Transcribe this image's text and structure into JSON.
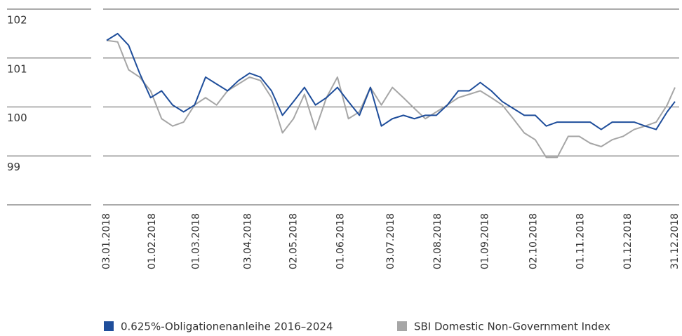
{
  "chart_data": {
    "type": "line",
    "x": [
      "03.01.2018",
      "10.01.2018",
      "17.01.2018",
      "24.01.2018",
      "31.01.2018",
      "07.02.2018",
      "14.02.2018",
      "21.02.2018",
      "28.02.2018",
      "07.03.2018",
      "14.03.2018",
      "21.03.2018",
      "28.03.2018",
      "04.04.2018",
      "11.04.2018",
      "18.04.2018",
      "25.04.2018",
      "02.05.2018",
      "09.05.2018",
      "16.05.2018",
      "23.05.2018",
      "30.05.2018",
      "06.06.2018",
      "13.06.2018",
      "20.06.2018",
      "27.06.2018",
      "04.07.2018",
      "11.07.2018",
      "18.07.2018",
      "25.07.2018",
      "01.08.2018",
      "08.08.2018",
      "15.08.2018",
      "22.08.2018",
      "29.08.2018",
      "05.09.2018",
      "12.09.2018",
      "19.09.2018",
      "26.09.2018",
      "03.10.2018",
      "10.10.2018",
      "17.10.2018",
      "24.10.2018",
      "31.10.2018",
      "07.11.2018",
      "14.11.2018",
      "21.11.2018",
      "28.11.2018",
      "05.12.2018",
      "12.12.2018",
      "19.12.2018",
      "26.12.2018",
      "31.12.2018"
    ],
    "series": [
      {
        "name": "0.625%-Obligationenanleihe 2016–2024",
        "color": "#1f4e9b",
        "values": [
          101.36,
          101.5,
          101.26,
          100.69,
          100.19,
          100.33,
          100.04,
          99.9,
          100.04,
          100.61,
          100.47,
          100.33,
          100.54,
          100.69,
          100.61,
          100.33,
          99.83,
          100.11,
          100.4,
          100.04,
          100.19,
          100.4,
          100.11,
          99.83,
          100.4,
          99.61,
          99.76,
          99.83,
          99.76,
          99.83,
          99.83,
          100.04,
          100.33,
          100.33,
          100.5,
          100.33,
          100.11,
          99.97,
          99.83,
          99.83,
          99.61,
          99.69,
          99.69,
          99.69,
          99.69,
          99.54,
          99.69,
          99.69,
          99.69,
          99.61,
          99.54,
          99.9,
          100.11
        ]
      },
      {
        "name": "SBI Domestic Non-Government Index",
        "color": "#a6a6a6",
        "values": [
          101.36,
          101.33,
          100.76,
          100.61,
          100.33,
          99.76,
          99.61,
          99.69,
          100.04,
          100.19,
          100.04,
          100.33,
          100.47,
          100.61,
          100.54,
          100.19,
          99.47,
          99.76,
          100.26,
          99.54,
          100.19,
          100.61,
          99.76,
          99.9,
          100.4,
          100.04,
          100.4,
          100.19,
          99.97,
          99.76,
          99.9,
          100.04,
          100.19,
          100.26,
          100.33,
          100.19,
          100.04,
          99.76,
          99.47,
          99.33,
          98.97,
          98.97,
          99.4,
          99.4,
          99.26,
          99.19,
          99.33,
          99.4,
          99.54,
          99.61,
          99.69,
          100.04,
          100.4
        ]
      }
    ],
    "xlim": [
      "03.01.2018",
      "31.12.2018"
    ],
    "xticks": [
      "03.01.2018",
      "01.02.2018",
      "01.03.2018",
      "03.04.2018",
      "02.05.2018",
      "01.06.2018",
      "03.07.2018",
      "02.08.2018",
      "01.09.2018",
      "02.10.2018",
      "01.11.2018",
      "01.12.2018",
      "31.12.2018"
    ],
    "ylim": [
      98,
      102
    ],
    "yticks": [
      102,
      101,
      100,
      99
    ],
    "grid": true
  }
}
